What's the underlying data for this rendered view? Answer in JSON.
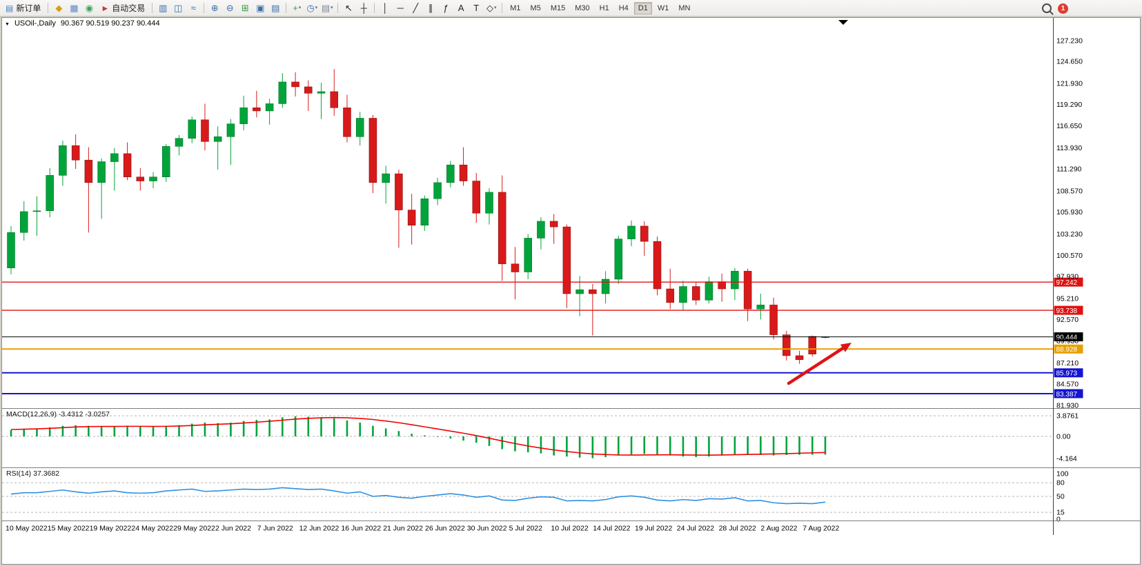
{
  "toolbar": {
    "notification_count": "1",
    "active_timeframe": "D1",
    "items": [
      {
        "t": "btn",
        "name": "new-order-button",
        "glyph": "▤",
        "gc": "#4a7ebb",
        "label": "新订单"
      },
      {
        "t": "sep"
      },
      {
        "t": "icon",
        "name": "market-watch-icon",
        "glyph": "◆",
        "c": "#d99e18"
      },
      {
        "t": "icon",
        "name": "data-window-icon",
        "glyph": "▦",
        "c": "#5b87c5"
      },
      {
        "t": "icon",
        "name": "navigator-icon",
        "glyph": "◉",
        "c": "#3aa657"
      },
      {
        "t": "btn",
        "name": "autotrading-button",
        "glyph": "►",
        "gc": "#c23a32",
        "label": "自动交易"
      },
      {
        "t": "sep"
      },
      {
        "t": "icon",
        "name": "bar-chart-icon",
        "glyph": "▥",
        "c": "#3a6ea8"
      },
      {
        "t": "icon",
        "name": "candlestick-chart-icon",
        "glyph": "◫",
        "c": "#3a6ea8"
      },
      {
        "t": "icon",
        "name": "line-chart-icon",
        "glyph": "≈",
        "c": "#3a6ea8"
      },
      {
        "t": "sep"
      },
      {
        "t": "icon",
        "name": "zoom-in-icon",
        "glyph": "⊕",
        "c": "#3a6ea8"
      },
      {
        "t": "icon",
        "name": "zoom-out-icon",
        "glyph": "⊖",
        "c": "#3a6ea8"
      },
      {
        "t": "icon",
        "name": "tile-windows-icon",
        "glyph": "⊞",
        "c": "#2f9e44"
      },
      {
        "t": "icon",
        "name": "cascade-windows-icon",
        "glyph": "▣",
        "c": "#3a6ea8"
      },
      {
        "t": "icon",
        "name": "arrange-charts-icon",
        "glyph": "▤",
        "c": "#3a6ea8"
      },
      {
        "t": "sep"
      },
      {
        "t": "icon",
        "name": "indicators-icon",
        "glyph": "+",
        "c": "#2f9e44",
        "dd": true
      },
      {
        "t": "icon",
        "name": "periods-icon",
        "glyph": "◷",
        "c": "#3a6ea8",
        "dd": true
      },
      {
        "t": "icon",
        "name": "templates-icon",
        "glyph": "▤",
        "c": "#7d8894",
        "dd": true
      },
      {
        "t": "sep"
      },
      {
        "t": "icon",
        "name": "cursor-icon",
        "glyph": "↖",
        "c": "#222"
      },
      {
        "t": "icon",
        "name": "crosshair-icon",
        "glyph": "┼",
        "c": "#222"
      },
      {
        "t": "sep"
      },
      {
        "t": "icon",
        "name": "vertical-line-icon",
        "glyph": "│",
        "c": "#222"
      },
      {
        "t": "icon",
        "name": "horizontal-line-icon",
        "glyph": "─",
        "c": "#222"
      },
      {
        "t": "icon",
        "name": "trendline-icon",
        "glyph": "╱",
        "c": "#222"
      },
      {
        "t": "icon",
        "name": "equidistant-channel-icon",
        "glyph": "∥",
        "c": "#222"
      },
      {
        "t": "icon",
        "name": "fibonacci-icon",
        "glyph": "ƒ",
        "c": "#222"
      },
      {
        "t": "icon",
        "name": "text-icon",
        "glyph": "A",
        "c": "#222"
      },
      {
        "t": "icon",
        "name": "text-label-icon",
        "glyph": "T",
        "c": "#222"
      },
      {
        "t": "icon",
        "name": "shapes-icon",
        "glyph": "◇",
        "c": "#222",
        "dd": true
      },
      {
        "t": "sep"
      },
      {
        "t": "tf",
        "label": "M1"
      },
      {
        "t": "tf",
        "label": "M5"
      },
      {
        "t": "tf",
        "label": "M15"
      },
      {
        "t": "tf",
        "label": "M30"
      },
      {
        "t": "tf",
        "label": "H1"
      },
      {
        "t": "tf",
        "label": "H4"
      },
      {
        "t": "tf",
        "label": "D1"
      },
      {
        "t": "tf",
        "label": "W1"
      },
      {
        "t": "tf",
        "label": "MN"
      }
    ]
  },
  "chart": {
    "collapse_glyph": "▼",
    "title": "USOil-,Daily",
    "ohlc": "90.367 90.519 90.237 90.444",
    "price_axis": [
      "127.230",
      "124.650",
      "121.930",
      "119.290",
      "116.650",
      "113.930",
      "111.290",
      "108.570",
      "105.930",
      "103.230",
      "100.570",
      "97.930",
      "95.210",
      "92.570",
      "89.930",
      "87.210",
      "84.570",
      "81.930"
    ],
    "date_axis": [
      "10 May 2022",
      "15 May 2022",
      "19 May 2022",
      "24 May 2022",
      "29 May 2022",
      "2 Jun 2022",
      "7 Jun 2022",
      "12 Jun 2022",
      "16 Jun 2022",
      "21 Jun 2022",
      "26 Jun 2022",
      "30 Jun 2022",
      "5 Jul 2022",
      "10 Jul 2022",
      "14 Jul 2022",
      "19 Jul 2022",
      "24 Jul 2022",
      "28 Jul 2022",
      "2 Aug 2022",
      "7 Aug 2022"
    ],
    "levels": [
      {
        "price": 97.242,
        "label": "97.242",
        "color": "#e01212",
        "width": 1.4
      },
      {
        "price": 93.738,
        "label": "93.738",
        "color": "#e01212",
        "width": 1.4
      },
      {
        "price": 90.444,
        "label": "90.444",
        "color": "#000000",
        "width": 1
      },
      {
        "price": 88.928,
        "label": "88.928",
        "color": "#e8a000",
        "width": 2
      },
      {
        "price": 85.973,
        "label": "85.973",
        "color": "#1414d2",
        "width": 2
      },
      {
        "price": 83.387,
        "label": "83.387",
        "color": "#1414d2",
        "width": 2
      }
    ]
  },
  "macd": {
    "label": "MACD(12,26,9)",
    "values": "-3.4312 -3.0257",
    "axis": [
      "3.8761",
      "0.00",
      "-4.164"
    ]
  },
  "rsi": {
    "label": "RSI(14)",
    "value": "37.3682",
    "axis": [
      "100",
      "80",
      "50",
      "15",
      "0"
    ]
  },
  "chart_data": {
    "type": "candlestick",
    "symbol": "USOil",
    "period": "Daily",
    "current_bar": {
      "open": 90.367,
      "high": 90.519,
      "low": 90.237,
      "close": 90.444
    },
    "price_range": [
      81.93,
      127.23
    ],
    "up_color": "#00a43a",
    "down_color": "#d81a1a",
    "horizontal_levels": [
      97.242,
      93.738,
      90.444,
      88.928,
      85.973,
      83.387
    ],
    "candles_ohlc": [
      [
        99.0,
        104.2,
        98.2,
        103.4
      ],
      [
        103.4,
        107.3,
        102.4,
        106.0
      ],
      [
        106.0,
        107.9,
        103.0,
        106.1
      ],
      [
        106.1,
        111.4,
        105.3,
        110.5
      ],
      [
        110.5,
        114.8,
        109.2,
        114.2
      ],
      [
        114.2,
        115.6,
        111.3,
        112.4
      ],
      [
        112.4,
        114.0,
        103.4,
        109.6
      ],
      [
        109.6,
        112.6,
        105.1,
        112.2
      ],
      [
        112.2,
        113.9,
        108.6,
        113.2
      ],
      [
        113.2,
        114.6,
        109.9,
        110.3
      ],
      [
        110.3,
        111.4,
        108.6,
        109.8
      ],
      [
        109.8,
        110.9,
        108.9,
        110.3
      ],
      [
        110.3,
        114.4,
        109.7,
        114.1
      ],
      [
        114.1,
        115.5,
        113.0,
        115.1
      ],
      [
        115.1,
        117.8,
        114.5,
        117.4
      ],
      [
        117.4,
        119.4,
        113.6,
        114.7
      ],
      [
        114.7,
        116.6,
        111.2,
        115.3
      ],
      [
        115.3,
        117.5,
        111.8,
        116.9
      ],
      [
        116.9,
        120.4,
        116.1,
        118.9
      ],
      [
        118.9,
        121.0,
        117.7,
        118.5
      ],
      [
        118.5,
        120.0,
        116.8,
        119.4
      ],
      [
        119.4,
        123.2,
        118.9,
        122.1
      ],
      [
        122.1,
        123.3,
        120.3,
        121.5
      ],
      [
        121.5,
        122.3,
        118.5,
        120.7
      ],
      [
        120.7,
        122.0,
        117.5,
        120.9
      ],
      [
        120.9,
        123.7,
        117.9,
        118.9
      ],
      [
        118.9,
        120.5,
        114.6,
        115.3
      ],
      [
        115.3,
        118.4,
        114.2,
        117.6
      ],
      [
        117.6,
        118.0,
        108.3,
        109.6
      ],
      [
        109.6,
        111.7,
        107.0,
        110.7
      ],
      [
        110.7,
        111.2,
        101.5,
        106.2
      ],
      [
        106.2,
        108.2,
        101.9,
        104.3
      ],
      [
        104.3,
        108.0,
        103.6,
        107.6
      ],
      [
        107.6,
        110.2,
        106.8,
        109.6
      ],
      [
        109.6,
        112.3,
        109.0,
        111.8
      ],
      [
        111.8,
        114.0,
        109.2,
        109.8
      ],
      [
        109.8,
        110.8,
        104.6,
        105.8
      ],
      [
        105.8,
        108.9,
        104.4,
        108.4
      ],
      [
        108.4,
        110.5,
        97.4,
        99.5
      ],
      [
        99.5,
        101.6,
        95.1,
        98.5
      ],
      [
        98.5,
        103.2,
        97.6,
        102.7
      ],
      [
        102.7,
        105.3,
        101.3,
        104.8
      ],
      [
        104.8,
        105.7,
        102.0,
        104.1
      ],
      [
        104.1,
        104.4,
        94.0,
        95.8
      ],
      [
        95.8,
        98.0,
        93.0,
        96.3
      ],
      [
        96.3,
        97.0,
        90.6,
        95.8
      ],
      [
        95.8,
        98.6,
        94.6,
        97.6
      ],
      [
        97.6,
        103.0,
        97.0,
        102.6
      ],
      [
        102.6,
        104.9,
        101.7,
        104.2
      ],
      [
        104.2,
        104.8,
        100.5,
        102.3
      ],
      [
        102.3,
        102.9,
        95.6,
        96.4
      ],
      [
        96.4,
        98.9,
        93.9,
        94.7
      ],
      [
        94.7,
        97.4,
        93.8,
        96.7
      ],
      [
        96.7,
        97.3,
        94.4,
        95.0
      ],
      [
        95.0,
        97.9,
        94.6,
        97.3
      ],
      [
        97.3,
        98.3,
        94.8,
        96.4
      ],
      [
        96.4,
        99.0,
        95.0,
        98.6
      ],
      [
        98.6,
        98.9,
        92.4,
        93.9
      ],
      [
        93.9,
        95.8,
        92.6,
        94.4
      ],
      [
        94.4,
        95.3,
        90.1,
        90.7
      ],
      [
        90.7,
        91.2,
        87.5,
        88.1
      ],
      [
        88.1,
        88.7,
        87.1,
        87.6
      ],
      [
        90.5,
        90.6,
        88.0,
        88.3
      ],
      [
        90.367,
        90.519,
        90.237,
        90.444
      ]
    ],
    "macd": {
      "params": [
        12,
        26,
        9
      ],
      "current": [
        -3.4312,
        -3.0257
      ],
      "range": [
        -4.164,
        3.8761
      ],
      "histogram": [
        1.2,
        1.4,
        1.5,
        1.7,
        2.0,
        2.1,
        2.0,
        1.8,
        1.9,
        2.0,
        1.9,
        1.8,
        1.9,
        2.1,
        2.4,
        2.6,
        2.5,
        2.6,
        2.9,
        3.1,
        3.2,
        3.6,
        3.8,
        3.7,
        3.6,
        3.4,
        3.0,
        2.6,
        2.0,
        1.5,
        1.0,
        0.5,
        0.2,
        -0.1,
        -0.4,
        -0.8,
        -1.2,
        -1.8,
        -2.4,
        -2.8,
        -3.0,
        -3.2,
        -3.6,
        -3.8,
        -4.0,
        -4.1,
        -3.9,
        -3.6,
        -3.4,
        -3.3,
        -3.4,
        -3.6,
        -3.8,
        -3.9,
        -3.8,
        -3.6,
        -3.5,
        -3.4,
        -3.5,
        -3.6,
        -3.5,
        -3.45,
        -3.45,
        -3.4312
      ],
      "signal": [
        1.3,
        1.35,
        1.42,
        1.52,
        1.65,
        1.78,
        1.85,
        1.87,
        1.88,
        1.9,
        1.9,
        1.88,
        1.9,
        1.95,
        2.05,
        2.18,
        2.28,
        2.38,
        2.52,
        2.68,
        2.85,
        3.05,
        3.25,
        3.4,
        3.5,
        3.55,
        3.5,
        3.38,
        3.18,
        2.9,
        2.58,
        2.2,
        1.8,
        1.4,
        1.0,
        0.6,
        0.15,
        -0.35,
        -0.85,
        -1.35,
        -1.8,
        -2.2,
        -2.55,
        -2.85,
        -3.1,
        -3.3,
        -3.42,
        -3.5,
        -3.52,
        -3.5,
        -3.48,
        -3.47,
        -3.5,
        -3.52,
        -3.53,
        -3.5,
        -3.45,
        -3.4,
        -3.35,
        -3.3,
        -3.25,
        -3.18,
        -3.1,
        -3.0257
      ]
    },
    "rsi": {
      "period": 14,
      "current": 37.3682,
      "range": [
        0,
        100
      ],
      "values": [
        55,
        58,
        58,
        61,
        64,
        60,
        57,
        60,
        62,
        58,
        57,
        58,
        62,
        64,
        66,
        61,
        62,
        64,
        66,
        65,
        66,
        69,
        67,
        65,
        66,
        62,
        57,
        60,
        50,
        52,
        48,
        46,
        50,
        53,
        56,
        53,
        48,
        51,
        42,
        41,
        46,
        49,
        48,
        40,
        41,
        40,
        43,
        49,
        51,
        48,
        42,
        40,
        43,
        41,
        45,
        44,
        47,
        40,
        41,
        36,
        34,
        35,
        34,
        37.3682
      ]
    }
  }
}
